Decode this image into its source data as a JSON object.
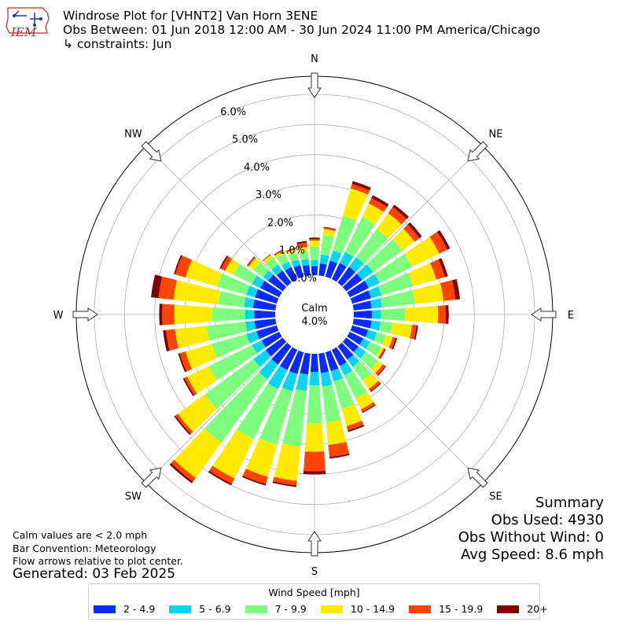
{
  "header": {
    "title": "Windrose Plot for [VHNT2] Van Horn 3ENE",
    "obs_between": "Obs Between: 01 Jun 2018 12:00 AM - 30 Jun 2024 11:00 PM America/Chicago",
    "constraints": "↳ constraints: Jun"
  },
  "logo": {
    "text": "IEM",
    "color": "#cc2222",
    "icon": "iowa-state-outline-icon"
  },
  "notes": {
    "calm": "Calm values are < 2.0 mph",
    "convention": "Bar Convention: Meteorology",
    "flow": "Flow arrows relative to plot center.",
    "generated": "Generated: 03 Feb 2025"
  },
  "summary": {
    "heading": "Summary",
    "obs_used": "Obs Used: 4930",
    "obs_without_wind": "Obs Without Wind: 0",
    "avg_speed": "Avg Speed: 8.6 mph"
  },
  "legend": {
    "title": "Wind Speed [mph]",
    "bins": [
      {
        "label": "2 - 4.9",
        "color": "#0a2cf2"
      },
      {
        "label": "5 - 6.9",
        "color": "#09d5f0"
      },
      {
        "label": "7 - 9.9",
        "color": "#7dff7d"
      },
      {
        "label": "10 - 14.9",
        "color": "#ffea00"
      },
      {
        "label": "15 - 19.9",
        "color": "#ff4400"
      },
      {
        "label": "20+",
        "color": "#7f0000"
      }
    ]
  },
  "chart_data": {
    "type": "windrose",
    "calm_label": "Calm",
    "calm_value": "4.0%",
    "calm_percent": 4.0,
    "radial_ticks": [
      "0.0%",
      "1.0%",
      "2.0%",
      "3.0%",
      "4.0%",
      "5.0%",
      "6.0%"
    ],
    "radial_max_percent": 6.6,
    "compass_labels": [
      "N",
      "NE",
      "E",
      "SE",
      "S",
      "SW",
      "W",
      "NW"
    ],
    "directions_deg": [
      0,
      10,
      20,
      30,
      40,
      50,
      60,
      70,
      80,
      90,
      100,
      110,
      120,
      130,
      140,
      150,
      160,
      170,
      180,
      190,
      200,
      210,
      220,
      230,
      240,
      250,
      260,
      270,
      280,
      290,
      300,
      310,
      320,
      330,
      340,
      350
    ],
    "cumulative_percent": [
      [
        0.3,
        0.5,
        0.95,
        1.15,
        1.2,
        1.25
      ],
      [
        0.4,
        0.7,
        1.35,
        1.55,
        1.6,
        1.62
      ],
      [
        0.55,
        0.9,
        2.1,
        3.05,
        3.2,
        3.3
      ],
      [
        0.6,
        1.0,
        2.3,
        2.8,
        3.0,
        3.1
      ],
      [
        0.65,
        1.05,
        2.2,
        2.85,
        3.1,
        3.2
      ],
      [
        0.65,
        1.1,
        2.3,
        2.8,
        3.0,
        3.1
      ],
      [
        0.7,
        1.1,
        2.3,
        3.3,
        3.6,
        3.7
      ],
      [
        0.65,
        1.0,
        2.1,
        2.9,
        3.2,
        3.3
      ],
      [
        0.6,
        0.95,
        2.05,
        3.0,
        3.4,
        3.55
      ],
      [
        0.6,
        0.9,
        1.7,
        2.8,
        3.05,
        3.15
      ],
      [
        0.6,
        0.9,
        1.3,
        1.95,
        2.1,
        2.15
      ],
      [
        0.55,
        0.85,
        1.15,
        1.4,
        1.5,
        1.55
      ],
      [
        0.5,
        0.75,
        1.15,
        1.25,
        1.3,
        1.33
      ],
      [
        0.5,
        0.8,
        1.3,
        1.5,
        1.6,
        1.63
      ],
      [
        0.55,
        0.85,
        1.4,
        1.75,
        1.85,
        1.88
      ],
      [
        0.6,
        0.95,
        1.8,
        2.2,
        2.3,
        2.33
      ],
      [
        0.65,
        1.0,
        1.95,
        2.55,
        2.7,
        2.75
      ],
      [
        0.65,
        1.1,
        2.3,
        3.05,
        3.45,
        3.5
      ],
      [
        0.6,
        1.05,
        2.3,
        3.25,
        3.9,
        4.0
      ],
      [
        0.7,
        1.25,
        3.1,
        4.25,
        4.4,
        4.45
      ],
      [
        0.75,
        1.35,
        3.2,
        4.3,
        4.55,
        4.6
      ],
      [
        0.75,
        1.45,
        3.3,
        4.75,
        4.95,
        5.0
      ],
      [
        0.75,
        1.35,
        3.95,
        5.4,
        5.55,
        5.62
      ],
      [
        0.7,
        1.2,
        3.2,
        4.3,
        4.4,
        4.45
      ],
      [
        0.65,
        1.0,
        2.6,
        3.4,
        3.5,
        3.55
      ],
      [
        0.7,
        1.05,
        2.25,
        3.15,
        3.35,
        3.4
      ],
      [
        0.7,
        1.0,
        2.3,
        3.35,
        3.65,
        3.75
      ],
      [
        0.7,
        1.0,
        2.1,
        3.35,
        3.75,
        3.85
      ],
      [
        0.75,
        1.05,
        1.9,
        3.4,
        3.9,
        4.15
      ],
      [
        0.75,
        1.05,
        2.05,
        3.15,
        3.5,
        3.55
      ],
      [
        0.7,
        1.0,
        1.7,
        2.0,
        2.15,
        2.2
      ],
      [
        0.6,
        0.8,
        1.2,
        1.4,
        1.45,
        1.47
      ],
      [
        0.5,
        0.75,
        1.05,
        1.15,
        1.17,
        1.18
      ],
      [
        0.45,
        0.65,
        0.95,
        1.05,
        1.08,
        1.1
      ],
      [
        0.4,
        0.6,
        0.85,
        0.95,
        0.98,
        1.0
      ],
      [
        0.35,
        0.55,
        0.8,
        0.95,
        1.1,
        1.15
      ]
    ]
  }
}
